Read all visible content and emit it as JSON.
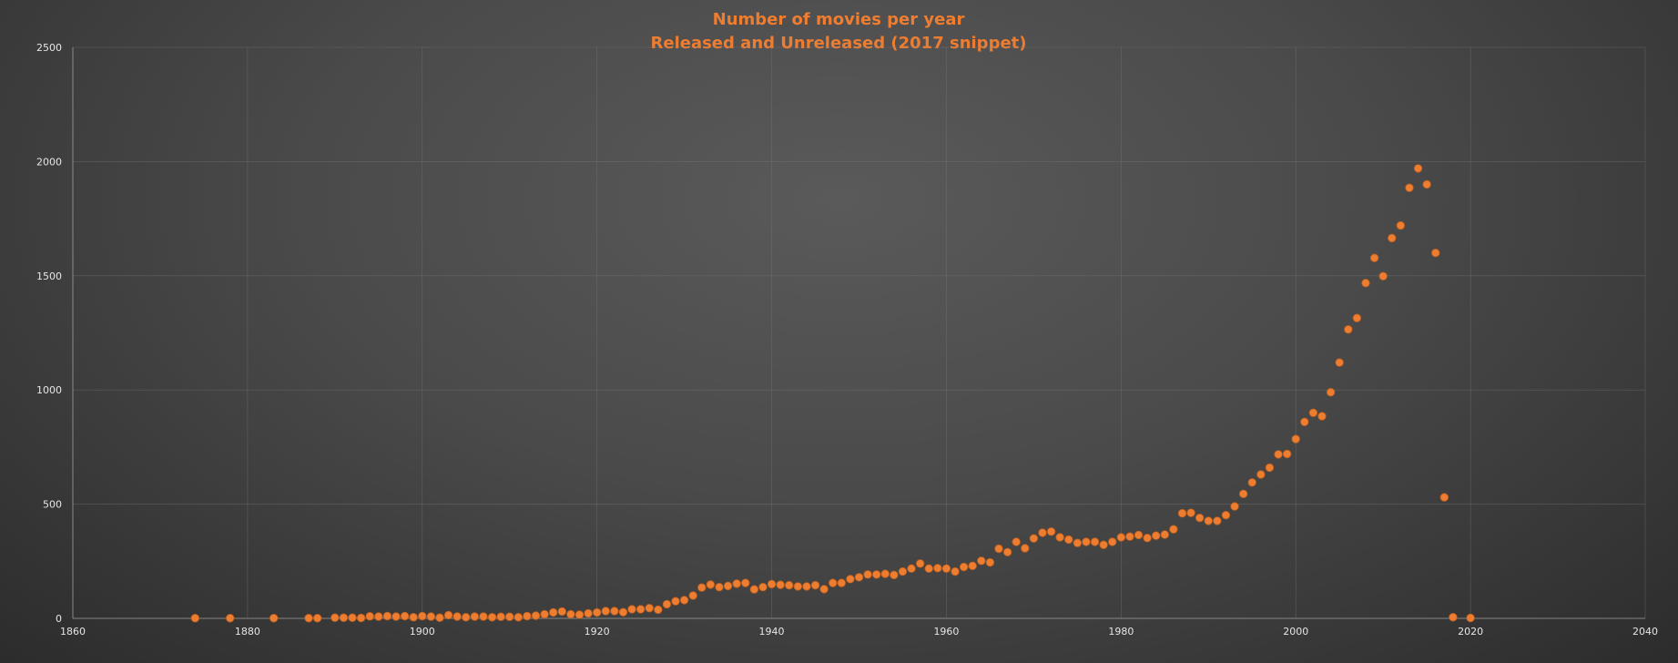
{
  "chart_data": {
    "type": "scatter",
    "title": "Number of movies per year",
    "subtitle": "Released and Unreleased (2017 snippet)",
    "xlabel": "",
    "ylabel": "",
    "xlim": [
      1860,
      2040
    ],
    "ylim": [
      0,
      2500
    ],
    "x_ticks": [
      "1860",
      "1880",
      "1900",
      "1920",
      "1940",
      "1960",
      "1980",
      "2000",
      "2020",
      "2040"
    ],
    "y_ticks": [
      "0",
      "500",
      "1000",
      "1500",
      "2000",
      "2500"
    ],
    "grid": true,
    "marker_color": "#ed7d31",
    "title_color": "#ed7d31",
    "series": [
      {
        "points": [
          [
            1874,
            1
          ],
          [
            1878,
            1
          ],
          [
            1883,
            1
          ],
          [
            1887,
            1
          ],
          [
            1888,
            1
          ],
          [
            1890,
            3
          ],
          [
            1891,
            3
          ],
          [
            1892,
            3
          ],
          [
            1893,
            2
          ],
          [
            1894,
            9
          ],
          [
            1895,
            8
          ],
          [
            1896,
            10
          ],
          [
            1897,
            8
          ],
          [
            1898,
            10
          ],
          [
            1899,
            5
          ],
          [
            1900,
            10
          ],
          [
            1901,
            8
          ],
          [
            1902,
            3
          ],
          [
            1903,
            14
          ],
          [
            1904,
            8
          ],
          [
            1905,
            5
          ],
          [
            1906,
            8
          ],
          [
            1907,
            8
          ],
          [
            1908,
            5
          ],
          [
            1909,
            7
          ],
          [
            1910,
            7
          ],
          [
            1911,
            5
          ],
          [
            1912,
            10
          ],
          [
            1913,
            12
          ],
          [
            1914,
            18
          ],
          [
            1915,
            26
          ],
          [
            1916,
            30
          ],
          [
            1917,
            18
          ],
          [
            1918,
            16
          ],
          [
            1919,
            22
          ],
          [
            1920,
            26
          ],
          [
            1921,
            32
          ],
          [
            1922,
            32
          ],
          [
            1923,
            27
          ],
          [
            1924,
            40
          ],
          [
            1925,
            40
          ],
          [
            1926,
            45
          ],
          [
            1927,
            38
          ],
          [
            1928,
            62
          ],
          [
            1929,
            75
          ],
          [
            1930,
            80
          ],
          [
            1931,
            100
          ],
          [
            1932,
            135
          ],
          [
            1933,
            148
          ],
          [
            1934,
            137
          ],
          [
            1935,
            142
          ],
          [
            1936,
            152
          ],
          [
            1937,
            155
          ],
          [
            1938,
            127
          ],
          [
            1939,
            137
          ],
          [
            1940,
            150
          ],
          [
            1941,
            147
          ],
          [
            1942,
            145
          ],
          [
            1943,
            140
          ],
          [
            1944,
            140
          ],
          [
            1945,
            145
          ],
          [
            1946,
            128
          ],
          [
            1947,
            155
          ],
          [
            1948,
            155
          ],
          [
            1949,
            172
          ],
          [
            1950,
            180
          ],
          [
            1951,
            192
          ],
          [
            1952,
            192
          ],
          [
            1953,
            195
          ],
          [
            1954,
            190
          ],
          [
            1955,
            205
          ],
          [
            1956,
            218
          ],
          [
            1957,
            240
          ],
          [
            1958,
            218
          ],
          [
            1959,
            220
          ],
          [
            1960,
            218
          ],
          [
            1961,
            205
          ],
          [
            1962,
            225
          ],
          [
            1963,
            230
          ],
          [
            1964,
            252
          ],
          [
            1965,
            245
          ],
          [
            1966,
            305
          ],
          [
            1967,
            290
          ],
          [
            1968,
            335
          ],
          [
            1969,
            307
          ],
          [
            1970,
            350
          ],
          [
            1971,
            375
          ],
          [
            1972,
            380
          ],
          [
            1973,
            355
          ],
          [
            1974,
            345
          ],
          [
            1975,
            330
          ],
          [
            1976,
            335
          ],
          [
            1977,
            335
          ],
          [
            1978,
            322
          ],
          [
            1979,
            335
          ],
          [
            1980,
            355
          ],
          [
            1981,
            358
          ],
          [
            1982,
            365
          ],
          [
            1983,
            352
          ],
          [
            1984,
            362
          ],
          [
            1985,
            367
          ],
          [
            1986,
            390
          ],
          [
            1987,
            460
          ],
          [
            1988,
            462
          ],
          [
            1989,
            440
          ],
          [
            1990,
            427
          ],
          [
            1991,
            427
          ],
          [
            1992,
            452
          ],
          [
            1993,
            490
          ],
          [
            1994,
            545
          ],
          [
            1995,
            595
          ],
          [
            1996,
            630
          ],
          [
            1997,
            660
          ],
          [
            1998,
            718
          ],
          [
            1999,
            720
          ],
          [
            2000,
            785
          ],
          [
            2001,
            860
          ],
          [
            2002,
            900
          ],
          [
            2003,
            885
          ],
          [
            2004,
            990
          ],
          [
            2005,
            1120
          ],
          [
            2006,
            1265
          ],
          [
            2007,
            1315
          ],
          [
            2008,
            1468
          ],
          [
            2009,
            1578
          ],
          [
            2010,
            1498
          ],
          [
            2011,
            1665
          ],
          [
            2012,
            1720
          ],
          [
            2013,
            1885
          ],
          [
            2014,
            1970
          ],
          [
            2015,
            1900
          ],
          [
            2016,
            1600
          ],
          [
            2017,
            530
          ],
          [
            2018,
            5
          ],
          [
            2020,
            2
          ]
        ]
      }
    ]
  }
}
